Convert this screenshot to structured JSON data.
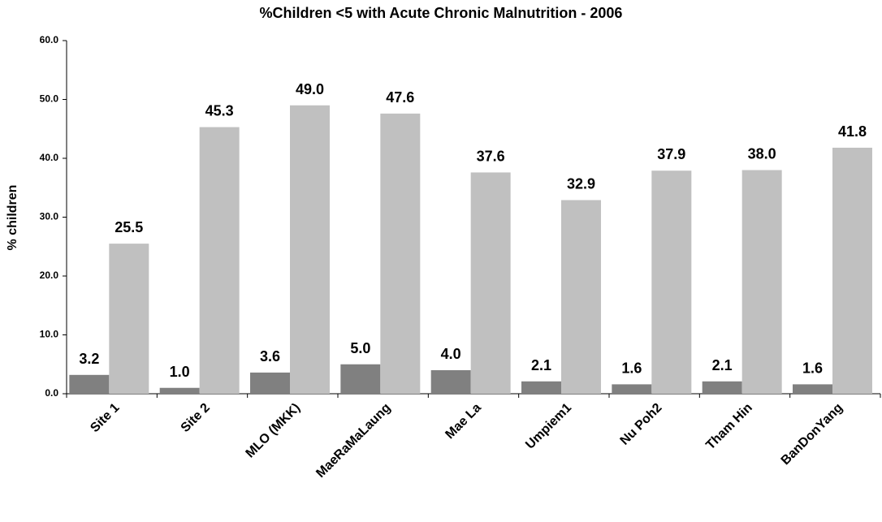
{
  "chart_data": {
    "type": "bar",
    "title": "%Children <5 with Acute Chronic Malnutrition - 2006",
    "y_label": "% children",
    "categories": [
      "Site 1",
      "Site 2",
      "MLO (MKK)",
      "MaeRaMaLaung",
      "Mae La",
      "Umpiem1",
      "Nu Poh2",
      "Tham Hin",
      "BanDonYang"
    ],
    "series": [
      {
        "color": "#808080",
        "values": [
          3.2,
          1.0,
          3.6,
          5.0,
          4.0,
          2.1,
          1.6,
          2.1,
          1.6
        ],
        "value_labels": [
          "3.2",
          "1.0",
          "3.6",
          "5.0",
          "4.0",
          "2.1",
          "1.6",
          "2.1",
          "1.6"
        ]
      },
      {
        "color": "#c0c0c0",
        "values": [
          25.5,
          45.3,
          49.0,
          47.6,
          37.6,
          32.9,
          37.9,
          38.0,
          41.8
        ],
        "value_labels": [
          "25.5",
          "45.3",
          "49.0",
          "47.6",
          "37.6",
          "32.9",
          "37.9",
          "38.0",
          "41.8"
        ]
      }
    ],
    "ylim": [
      0,
      60
    ],
    "yticks": [
      {
        "value": 0,
        "label": "0.0"
      },
      {
        "value": 10,
        "label": "10.0"
      },
      {
        "value": 20,
        "label": "20.0"
      },
      {
        "value": 30,
        "label": "30.0"
      },
      {
        "value": 40,
        "label": "40.0"
      },
      {
        "value": 50,
        "label": "50.0"
      },
      {
        "value": 60,
        "label": "60.0"
      }
    ],
    "grid": false
  }
}
